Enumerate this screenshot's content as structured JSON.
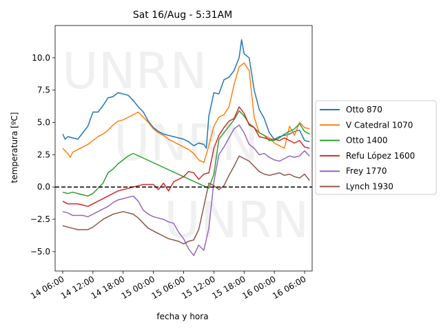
{
  "chart_data": {
    "type": "line",
    "title": "Sat 16/Aug - 5:31AM",
    "xlabel": "fecha y hora",
    "ylabel": "temperatura [ºC]",
    "watermark": "UNRN",
    "x_unit": "hours since 14 00:00",
    "xlim": [
      4.5,
      55.5
    ],
    "ylim": [
      -6.5,
      12.5
    ],
    "xticks": [
      {
        "v": 6,
        "label": "14 06:00"
      },
      {
        "v": 12,
        "label": "14 12:00"
      },
      {
        "v": 18,
        "label": "14 18:00"
      },
      {
        "v": 24,
        "label": "15 00:00"
      },
      {
        "v": 30,
        "label": "15 06:00"
      },
      {
        "v": 36,
        "label": "15 12:00"
      },
      {
        "v": 42,
        "label": "15 18:00"
      },
      {
        "v": 48,
        "label": "16 00:00"
      },
      {
        "v": 54,
        "label": "16 06:00"
      }
    ],
    "yticks": [
      {
        "v": -5,
        "label": "−5.0"
      },
      {
        "v": -2.5,
        "label": "−2.5"
      },
      {
        "v": 0,
        "label": "0.0"
      },
      {
        "v": 2.5,
        "label": "2.5"
      },
      {
        "v": 5,
        "label": "5.0"
      },
      {
        "v": 7.5,
        "label": "7.5"
      },
      {
        "v": 10,
        "label": "10.0"
      }
    ],
    "reference_line": {
      "y": 0,
      "style": "dashed",
      "color": "#000000"
    },
    "legend_position": "right",
    "series": [
      {
        "name": "Otto 870",
        "color": "#1f77b4",
        "points": [
          [
            6,
            4.1
          ],
          [
            6.5,
            3.7
          ],
          [
            7,
            3.9
          ],
          [
            8,
            3.8
          ],
          [
            9,
            3.7
          ],
          [
            10,
            4.2
          ],
          [
            11,
            4.7
          ],
          [
            12,
            5.8
          ],
          [
            13,
            5.8
          ],
          [
            14,
            6.3
          ],
          [
            15,
            6.9
          ],
          [
            16,
            7.0
          ],
          [
            17,
            7.3
          ],
          [
            18,
            7.2
          ],
          [
            19,
            7.1
          ],
          [
            20,
            6.7
          ],
          [
            21,
            6.2
          ],
          [
            22,
            5.8
          ],
          [
            23,
            5.1
          ],
          [
            24,
            4.6
          ],
          [
            25,
            4.3
          ],
          [
            26,
            4.1
          ],
          [
            27,
            4.0
          ],
          [
            28,
            3.9
          ],
          [
            29,
            3.8
          ],
          [
            30,
            3.7
          ],
          [
            31,
            3.5
          ],
          [
            32,
            3.2
          ],
          [
            33,
            3.4
          ],
          [
            34,
            3.3
          ],
          [
            34.5,
            3.0
          ],
          [
            35,
            5.5
          ],
          [
            36,
            7.3
          ],
          [
            37,
            7.2
          ],
          [
            38,
            8.3
          ],
          [
            39,
            8.5
          ],
          [
            40,
            9.0
          ],
          [
            41,
            10.0
          ],
          [
            41.5,
            11.4
          ],
          [
            42,
            10.3
          ],
          [
            43,
            10.0
          ],
          [
            44,
            7.5
          ],
          [
            45,
            6.0
          ],
          [
            46,
            5.3
          ],
          [
            47,
            4.2
          ],
          [
            48,
            3.7
          ],
          [
            49,
            3.9
          ],
          [
            50,
            4.0
          ],
          [
            51,
            4.1
          ],
          [
            52,
            4.3
          ],
          [
            53,
            4.4
          ],
          [
            54,
            3.6
          ],
          [
            55,
            3.5
          ]
        ]
      },
      {
        "name": "V Catedral 1070",
        "color": "#ff7f0e",
        "points": [
          [
            6,
            3.0
          ],
          [
            6.5,
            2.8
          ],
          [
            7,
            2.6
          ],
          [
            7.5,
            2.3
          ],
          [
            8,
            2.7
          ],
          [
            9,
            2.9
          ],
          [
            10,
            3.1
          ],
          [
            11,
            3.3
          ],
          [
            12,
            3.6
          ],
          [
            13,
            3.9
          ],
          [
            14,
            4.1
          ],
          [
            15,
            4.4
          ],
          [
            16,
            4.8
          ],
          [
            17,
            5.1
          ],
          [
            18,
            5.2
          ],
          [
            19,
            5.4
          ],
          [
            20,
            5.6
          ],
          [
            21,
            5.8
          ],
          [
            22,
            5.4
          ],
          [
            23,
            5.0
          ],
          [
            24,
            4.5
          ],
          [
            25,
            4.2
          ],
          [
            26,
            4.0
          ],
          [
            27,
            3.7
          ],
          [
            28,
            3.5
          ],
          [
            29,
            3.3
          ],
          [
            30,
            3.1
          ],
          [
            31,
            2.9
          ],
          [
            32,
            2.6
          ],
          [
            33,
            2.1
          ],
          [
            34,
            1.9
          ],
          [
            35,
            3.2
          ],
          [
            36,
            4.7
          ],
          [
            37,
            5.4
          ],
          [
            38,
            5.6
          ],
          [
            39,
            6.2
          ],
          [
            40,
            7.9
          ],
          [
            41,
            9.3
          ],
          [
            42,
            9.6
          ],
          [
            43,
            9.0
          ],
          [
            44,
            5.4
          ],
          [
            45,
            4.2
          ],
          [
            46,
            4.0
          ],
          [
            47,
            3.8
          ],
          [
            48,
            3.4
          ],
          [
            49,
            3.2
          ],
          [
            50,
            3.0
          ],
          [
            51,
            4.7
          ],
          [
            52,
            4.0
          ],
          [
            53,
            5.0
          ],
          [
            54,
            4.6
          ],
          [
            55,
            4.5
          ]
        ]
      },
      {
        "name": "Otto 1400",
        "color": "#2ca02c",
        "points": [
          [
            6,
            -0.4
          ],
          [
            7,
            -0.5
          ],
          [
            8,
            -0.4
          ],
          [
            9,
            -0.5
          ],
          [
            10,
            -0.6
          ],
          [
            11,
            -0.7
          ],
          [
            12,
            -0.5
          ],
          [
            13,
            -0.1
          ],
          [
            14,
            0.3
          ],
          [
            15,
            1.1
          ],
          [
            16,
            1.4
          ],
          [
            17,
            1.8
          ],
          [
            18,
            2.1
          ],
          [
            19,
            2.4
          ],
          [
            20,
            2.6
          ],
          [
            35,
            -0.1
          ],
          [
            36,
            1.0
          ],
          [
            37,
            3.7
          ],
          [
            38,
            4.2
          ],
          [
            39,
            4.7
          ],
          [
            40,
            5.2
          ],
          [
            41,
            5.9
          ],
          [
            42,
            5.5
          ],
          [
            43,
            4.9
          ],
          [
            44,
            4.6
          ],
          [
            45,
            4.2
          ],
          [
            46,
            4.0
          ],
          [
            47,
            3.6
          ],
          [
            48,
            3.6
          ],
          [
            49,
            3.8
          ],
          [
            50,
            4.1
          ],
          [
            51,
            4.3
          ],
          [
            52,
            4.5
          ],
          [
            53,
            4.9
          ],
          [
            54,
            4.3
          ],
          [
            55,
            4.1
          ]
        ]
      },
      {
        "name": "Refu López 1600",
        "color": "#d62728",
        "points": [
          [
            6,
            -1.1
          ],
          [
            7,
            -1.3
          ],
          [
            8,
            -1.3
          ],
          [
            9,
            -1.3
          ],
          [
            10,
            -1.4
          ],
          [
            11,
            -1.5
          ],
          [
            12,
            -1.3
          ],
          [
            13,
            -1.1
          ],
          [
            14,
            -0.9
          ],
          [
            15,
            -0.7
          ],
          [
            16,
            -0.5
          ],
          [
            17,
            -0.3
          ],
          [
            18,
            -0.2
          ],
          [
            19,
            -0.1
          ],
          [
            20,
            0.0
          ],
          [
            21,
            0.1
          ],
          [
            22,
            0.2
          ],
          [
            23,
            0.2
          ],
          [
            24,
            0.2
          ],
          [
            25,
            -0.2
          ],
          [
            26,
            0.3
          ],
          [
            27,
            -0.3
          ],
          [
            28,
            0.4
          ],
          [
            29,
            0.6
          ],
          [
            30,
            0.8
          ],
          [
            31,
            1.2
          ],
          [
            32,
            1.1
          ],
          [
            33,
            0.6
          ],
          [
            34,
            1.0
          ],
          [
            35,
            1.1
          ],
          [
            36,
            3.0
          ],
          [
            37,
            4.0
          ],
          [
            38,
            4.6
          ],
          [
            39,
            5.1
          ],
          [
            40,
            5.3
          ],
          [
            41,
            6.2
          ],
          [
            42,
            5.7
          ],
          [
            43,
            4.8
          ],
          [
            44,
            4.6
          ],
          [
            45,
            3.9
          ],
          [
            46,
            3.8
          ],
          [
            47,
            3.7
          ],
          [
            48,
            3.7
          ],
          [
            49,
            3.6
          ],
          [
            50,
            3.8
          ],
          [
            51,
            3.6
          ],
          [
            52,
            3.4
          ],
          [
            53,
            3.6
          ],
          [
            54,
            3.1
          ],
          [
            55,
            3.0
          ]
        ]
      },
      {
        "name": "Frey 1770",
        "color": "#9467bd",
        "points": [
          [
            6,
            -1.9
          ],
          [
            7,
            -2.0
          ],
          [
            8,
            -2.2
          ],
          [
            9,
            -2.2
          ],
          [
            10,
            -2.2
          ],
          [
            11,
            -2.3
          ],
          [
            12,
            -2.1
          ],
          [
            13,
            -1.9
          ],
          [
            14,
            -1.7
          ],
          [
            15,
            -1.5
          ],
          [
            16,
            -1.2
          ],
          [
            17,
            -1.0
          ],
          [
            18,
            -0.9
          ],
          [
            19,
            -0.8
          ],
          [
            20,
            -0.7
          ],
          [
            21,
            -1.1
          ],
          [
            22,
            -1.8
          ],
          [
            23,
            -2.1
          ],
          [
            24,
            -2.3
          ],
          [
            25,
            -2.4
          ],
          [
            26,
            -2.5
          ],
          [
            27,
            -2.7
          ],
          [
            28,
            -2.8
          ],
          [
            29,
            -3.5
          ],
          [
            30,
            -4.0
          ],
          [
            31,
            -4.8
          ],
          [
            32,
            -5.3
          ],
          [
            33,
            -4.5
          ],
          [
            34,
            -4.9
          ],
          [
            35,
            -3.2
          ],
          [
            36,
            0.4
          ],
          [
            37,
            2.5
          ],
          [
            38,
            3.1
          ],
          [
            39,
            3.8
          ],
          [
            40,
            4.5
          ],
          [
            41,
            4.8
          ],
          [
            42,
            4.2
          ],
          [
            43,
            3.3
          ],
          [
            44,
            3.0
          ],
          [
            45,
            2.5
          ],
          [
            46,
            2.6
          ],
          [
            47,
            2.3
          ],
          [
            48,
            2.1
          ],
          [
            49,
            2.0
          ],
          [
            50,
            2.2
          ],
          [
            51,
            2.4
          ],
          [
            52,
            2.3
          ],
          [
            53,
            2.4
          ],
          [
            54,
            2.8
          ],
          [
            55,
            2.4
          ]
        ]
      },
      {
        "name": "Lynch 1930",
        "color": "#8c564b",
        "points": [
          [
            6,
            -3.0
          ],
          [
            7,
            -3.1
          ],
          [
            8,
            -3.2
          ],
          [
            9,
            -3.3
          ],
          [
            10,
            -3.3
          ],
          [
            11,
            -3.3
          ],
          [
            12,
            -3.1
          ],
          [
            13,
            -2.8
          ],
          [
            14,
            -2.5
          ],
          [
            15,
            -2.3
          ],
          [
            16,
            -2.1
          ],
          [
            17,
            -2.0
          ],
          [
            18,
            -1.9
          ],
          [
            19,
            -2.0
          ],
          [
            20,
            -2.1
          ],
          [
            21,
            -2.4
          ],
          [
            22,
            -2.8
          ],
          [
            23,
            -3.2
          ],
          [
            24,
            -3.4
          ],
          [
            25,
            -3.6
          ],
          [
            26,
            -3.8
          ],
          [
            27,
            -4.0
          ],
          [
            28,
            -4.1
          ],
          [
            29,
            -4.2
          ],
          [
            30,
            -4.4
          ],
          [
            31,
            -4.2
          ],
          [
            32,
            -4.1
          ],
          [
            33,
            -3.3
          ],
          [
            34,
            -1.5
          ],
          [
            35,
            0.3
          ],
          [
            36,
            0.1
          ],
          [
            37,
            -0.2
          ],
          [
            38,
            0.1
          ],
          [
            39,
            0.9
          ],
          [
            40,
            1.6
          ],
          [
            41,
            2.4
          ],
          [
            42,
            2.2
          ],
          [
            43,
            2.0
          ],
          [
            44,
            1.6
          ],
          [
            45,
            1.2
          ],
          [
            46,
            1.0
          ],
          [
            47,
            0.9
          ],
          [
            48,
            1.0
          ],
          [
            49,
            1.1
          ],
          [
            50,
            0.9
          ],
          [
            51,
            1.0
          ],
          [
            52,
            0.8
          ],
          [
            53,
            0.7
          ],
          [
            54,
            1.0
          ],
          [
            55,
            0.5
          ]
        ]
      }
    ]
  }
}
